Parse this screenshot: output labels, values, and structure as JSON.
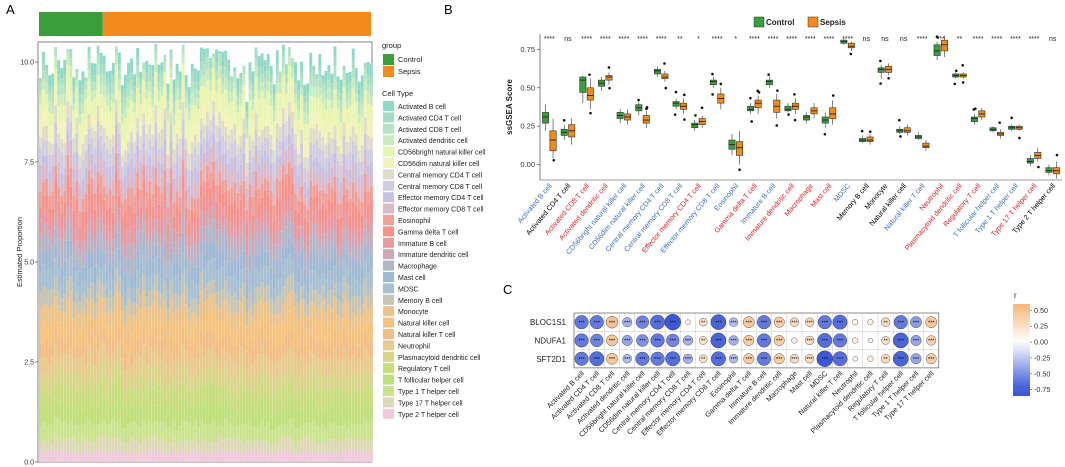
{
  "colors": {
    "control": "#3a9e3a",
    "sepsis": "#f28a1c",
    "blue_label": "#3b6fc4",
    "red_label": "#e02020",
    "black_label": "#000000",
    "corr_pos": "#f5a25a",
    "corr_neg": "#3c58d8"
  },
  "chart_data": [
    {
      "panel": "A",
      "type": "bar",
      "subtype": "stacked-proportion",
      "ylabel": "Estimated Proportion",
      "ytick_labels": [
        "0.0",
        "2.5",
        "5.0",
        "7.5",
        "10.0"
      ],
      "ylim": [
        0,
        10.5
      ],
      "group_legend": {
        "title": "group",
        "entries": [
          "Control",
          "Sepsis"
        ]
      },
      "n_samples": 110,
      "n_control": 21,
      "celltype_legend_title": "Cell Type",
      "cell_types": [
        {
          "name": "Activated B cell",
          "color": "#8fd9c9",
          "share": 0.3
        },
        {
          "name": "Activated CD4 T cell",
          "color": "#a3ddc6",
          "share": 0.2
        },
        {
          "name": "Activated CD8 T cell",
          "color": "#b5e3c4",
          "share": 0.25
        },
        {
          "name": "Activated dendritic cell",
          "color": "#c9ecbf",
          "share": 0.25
        },
        {
          "name": "CD56bright natural killer cell",
          "color": "#e8f5b0",
          "share": 0.4
        },
        {
          "name": "CD56dim natural killer cell",
          "color": "#f1f4b6",
          "share": 0.4
        },
        {
          "name": "Central memory CD4 T cell",
          "color": "#e0dcca",
          "share": 0.35
        },
        {
          "name": "Central memory CD8 T cell",
          "color": "#d2cce0",
          "share": 0.4
        },
        {
          "name": "Effector memory CD4 T cell",
          "color": "#c8c0e2",
          "share": 0.3
        },
        {
          "name": "Effector memory CD8 T cell",
          "color": "#dcb9c8",
          "share": 0.35
        },
        {
          "name": "Eosinophil",
          "color": "#f0a098",
          "share": 0.4
        },
        {
          "name": "Gamma delta T cell",
          "color": "#f6928c",
          "share": 0.4
        },
        {
          "name": "Immature B cell",
          "color": "#e9999f",
          "share": 0.35
        },
        {
          "name": "Immature dendritic cell",
          "color": "#cfa8b8",
          "share": 0.3
        },
        {
          "name": "Macrophage",
          "color": "#b3b5c9",
          "share": 0.4
        },
        {
          "name": "Mast cell",
          "color": "#9fb8d4",
          "share": 0.4
        },
        {
          "name": "MDSC",
          "color": "#a6c0d2",
          "share": 0.45
        },
        {
          "name": "Memory B cell",
          "color": "#c7c4b3",
          "share": 0.4
        },
        {
          "name": "Monocyte",
          "color": "#ebc38c",
          "share": 0.4
        },
        {
          "name": "Natural killer cell",
          "color": "#f6c37e",
          "share": 0.45
        },
        {
          "name": "Natural killer T cell",
          "color": "#f3be86",
          "share": 0.4
        },
        {
          "name": "Neutrophil",
          "color": "#e8ca8e",
          "share": 0.45
        },
        {
          "name": "Plasmacytoid dendritic cell",
          "color": "#d8d58a",
          "share": 0.4
        },
        {
          "name": "Regulatory T cell",
          "color": "#c9dc7e",
          "share": 0.45
        },
        {
          "name": "T follicular helper cell",
          "color": "#bfe07a",
          "share": 0.45
        },
        {
          "name": "Type 1 T helper cell",
          "color": "#cbe28e",
          "share": 0.4
        },
        {
          "name": "Type 17 T helper cell",
          "color": "#ddd9b6",
          "share": 0.3
        },
        {
          "name": "Type 2 T helper cell",
          "color": "#f1c9dc",
          "share": 0.25
        }
      ]
    },
    {
      "panel": "B",
      "type": "box",
      "ylabel": "ssGSEA Score",
      "ylim": [
        -0.1,
        0.85
      ],
      "yticks": [
        0.0,
        0.25,
        0.5,
        0.75
      ],
      "ytick_labels": [
        "0.00",
        "0.25",
        "0.50",
        "0.75"
      ],
      "legend": [
        "Control",
        "Sepsis"
      ],
      "series": [
        {
          "name": "Activated B cell",
          "label_color": "blue",
          "sig": "****",
          "control": [
            0.22,
            0.27,
            0.31,
            0.34,
            0.39
          ],
          "sepsis": [
            0.04,
            0.09,
            0.16,
            0.22,
            0.3
          ]
        },
        {
          "name": "Activated CD4 T cell",
          "label_color": "black",
          "sig": "ns",
          "control": [
            0.16,
            0.19,
            0.21,
            0.23,
            0.26
          ],
          "sepsis": [
            0.13,
            0.18,
            0.22,
            0.26,
            0.3
          ]
        },
        {
          "name": "Activated CD8 T cell",
          "label_color": "red",
          "sig": "****",
          "control": [
            0.4,
            0.47,
            0.55,
            0.57,
            0.58
          ],
          "sepsis": [
            0.36,
            0.42,
            0.45,
            0.5,
            0.56
          ]
        },
        {
          "name": "Activated dendritic cell",
          "label_color": "red",
          "sig": "****",
          "control": [
            0.48,
            0.51,
            0.53,
            0.55,
            0.57
          ],
          "sepsis": [
            0.52,
            0.55,
            0.57,
            0.58,
            0.6
          ]
        },
        {
          "name": "CD56bright natural killer cell",
          "label_color": "blue",
          "sig": "****",
          "control": [
            0.27,
            0.3,
            0.32,
            0.34,
            0.36
          ],
          "sepsis": [
            0.26,
            0.29,
            0.31,
            0.33,
            0.36
          ]
        },
        {
          "name": "CD56dim natural killer cell",
          "label_color": "blue",
          "sig": "****",
          "control": [
            0.32,
            0.35,
            0.37,
            0.39,
            0.41
          ],
          "sepsis": [
            0.24,
            0.27,
            0.29,
            0.32,
            0.35
          ]
        },
        {
          "name": "Central memory CD4 T cell",
          "label_color": "blue",
          "sig": "****",
          "control": [
            0.57,
            0.59,
            0.61,
            0.62,
            0.64
          ],
          "sepsis": [
            0.54,
            0.56,
            0.57,
            0.59,
            0.61
          ]
        },
        {
          "name": "Central memory CD8 T cell",
          "label_color": "blue",
          "sig": "**",
          "control": [
            0.36,
            0.38,
            0.4,
            0.41,
            0.43
          ],
          "sepsis": [
            0.33,
            0.36,
            0.38,
            0.4,
            0.43
          ]
        },
        {
          "name": "Effector memory CD4 T cell",
          "label_color": "red",
          "sig": "*",
          "control": [
            0.22,
            0.24,
            0.26,
            0.27,
            0.29
          ],
          "sepsis": [
            0.24,
            0.26,
            0.28,
            0.3,
            0.32
          ]
        },
        {
          "name": "Effector memory CD8 T cell",
          "label_color": "blue",
          "sig": "****",
          "control": [
            0.5,
            0.52,
            0.54,
            0.55,
            0.57
          ],
          "sepsis": [
            0.36,
            0.4,
            0.43,
            0.46,
            0.5
          ]
        },
        {
          "name": "Eosinophil",
          "label_color": "blue",
          "sig": "*",
          "control": [
            0.06,
            0.1,
            0.13,
            0.16,
            0.2
          ],
          "sepsis": [
            0.0,
            0.06,
            0.11,
            0.15,
            0.22
          ]
        },
        {
          "name": "Gamma delta T cell",
          "label_color": "red",
          "sig": "****",
          "control": [
            0.33,
            0.35,
            0.36,
            0.38,
            0.4
          ],
          "sepsis": [
            0.33,
            0.37,
            0.4,
            0.42,
            0.45
          ]
        },
        {
          "name": "Immature B cell",
          "label_color": "blue",
          "sig": "****",
          "control": [
            0.5,
            0.52,
            0.54,
            0.55,
            0.57
          ],
          "sepsis": [
            0.3,
            0.34,
            0.38,
            0.42,
            0.46
          ]
        },
        {
          "name": "Immature dendritic cell",
          "label_color": "red",
          "sig": "****",
          "control": [
            0.34,
            0.35,
            0.36,
            0.38,
            0.4
          ],
          "sepsis": [
            0.33,
            0.36,
            0.38,
            0.4,
            0.43
          ]
        },
        {
          "name": "Macrophage",
          "label_color": "red",
          "sig": "****",
          "control": [
            0.27,
            0.29,
            0.31,
            0.32,
            0.34
          ],
          "sepsis": [
            0.3,
            0.33,
            0.35,
            0.37,
            0.4
          ]
        },
        {
          "name": "Mast cell",
          "label_color": "red",
          "sig": "****",
          "control": [
            0.24,
            0.27,
            0.29,
            0.31,
            0.34
          ],
          "sepsis": [
            0.26,
            0.3,
            0.33,
            0.37,
            0.42
          ]
        },
        {
          "name": "MDSC",
          "label_color": "blue",
          "sig": "****",
          "control": [
            0.78,
            0.79,
            0.8,
            0.81,
            0.82
          ],
          "sepsis": [
            0.74,
            0.76,
            0.77,
            0.79,
            0.8
          ]
        },
        {
          "name": "Memory B cell",
          "label_color": "black",
          "sig": "ns",
          "control": [
            0.14,
            0.15,
            0.16,
            0.17,
            0.19
          ],
          "sepsis": [
            0.13,
            0.15,
            0.16,
            0.18,
            0.2
          ]
        },
        {
          "name": "Monocyte",
          "label_color": "black",
          "sig": "ns",
          "control": [
            0.56,
            0.6,
            0.62,
            0.63,
            0.65
          ],
          "sepsis": [
            0.58,
            0.6,
            0.62,
            0.64,
            0.66
          ]
        },
        {
          "name": "Natural killer cell",
          "label_color": "black",
          "sig": "ns",
          "control": [
            0.2,
            0.21,
            0.22,
            0.23,
            0.25
          ],
          "sepsis": [
            0.19,
            0.21,
            0.22,
            0.24,
            0.26
          ]
        },
        {
          "name": "Natural killer T cell",
          "label_color": "blue",
          "sig": "****",
          "control": [
            0.16,
            0.17,
            0.18,
            0.19,
            0.21
          ],
          "sepsis": [
            0.09,
            0.11,
            0.12,
            0.14,
            0.16
          ]
        },
        {
          "name": "Neutrophil",
          "label_color": "red",
          "sig": "***",
          "control": [
            0.68,
            0.71,
            0.74,
            0.78,
            0.8
          ],
          "sepsis": [
            0.7,
            0.74,
            0.78,
            0.81,
            0.84
          ]
        },
        {
          "name": "Plasmacytoid dendritic cell",
          "label_color": "red",
          "sig": "**",
          "control": [
            0.56,
            0.57,
            0.58,
            0.59,
            0.6
          ],
          "sepsis": [
            0.56,
            0.57,
            0.58,
            0.59,
            0.6
          ]
        },
        {
          "name": "Regulatory T cell",
          "label_color": "red",
          "sig": "****",
          "control": [
            0.26,
            0.28,
            0.3,
            0.31,
            0.33
          ],
          "sepsis": [
            0.29,
            0.31,
            0.33,
            0.35,
            0.37
          ]
        },
        {
          "name": "T follicular helper cell",
          "label_color": "blue",
          "sig": "****",
          "control": [
            0.21,
            0.22,
            0.23,
            0.24,
            0.25
          ],
          "sepsis": [
            0.17,
            0.19,
            0.2,
            0.21,
            0.23
          ]
        },
        {
          "name": "Type 1 T helper cell",
          "label_color": "blue",
          "sig": "****",
          "control": [
            0.22,
            0.23,
            0.24,
            0.25,
            0.26
          ],
          "sepsis": [
            0.22,
            0.23,
            0.24,
            0.25,
            0.26
          ]
        },
        {
          "name": "Type 17 T helper cell",
          "label_color": "red",
          "sig": "****",
          "control": [
            -0.01,
            0.01,
            0.02,
            0.04,
            0.06
          ],
          "sepsis": [
            0.02,
            0.04,
            0.06,
            0.08,
            0.11
          ]
        },
        {
          "name": "Type 2 T helper cell",
          "label_color": "black",
          "sig": "ns",
          "control": [
            -0.07,
            -0.05,
            -0.04,
            -0.02,
            0.0
          ],
          "sepsis": [
            -0.09,
            -0.06,
            -0.04,
            -0.02,
            0.02
          ]
        }
      ]
    },
    {
      "panel": "C",
      "type": "heatmap",
      "subtype": "correlation-dotplot",
      "rows": [
        "BLOC1S1",
        "NDUFA1",
        "SFT2D1"
      ],
      "columns": [
        "Activated B cell",
        "Activated CD4 T cell",
        "Activated CD8 T cell",
        "Activated dendritic cell",
        "CD56bright natural killer cell",
        "CD56dim natural killer cell",
        "Central memory CD4 T cell",
        "Central memory CD8 T cell",
        "Effector memory CD4 T cell",
        "Effector memory CD8 T cell",
        "Eosinophil",
        "Gamma delta T cell",
        "Immature  B cell",
        "Immature dendritic cell",
        "Macrophage",
        "Mast cell",
        "MDSC",
        "Natural killer T cell",
        "Neutrophil",
        "Plasmacytoid dendritic cell",
        "Regulatory T cell",
        "T follicular helper cell",
        "Type 1 T helper cell",
        "Type 17 T helper cell"
      ],
      "r": [
        [
          -0.6,
          -0.6,
          0.5,
          -0.35,
          -0.55,
          -0.65,
          -0.75,
          0.05,
          0.25,
          -0.7,
          -0.3,
          0.45,
          -0.6,
          0.4,
          0.3,
          0.3,
          -0.6,
          -0.65,
          0.1,
          0.1,
          0.3,
          -0.6,
          -0.45,
          0.45
        ],
        [
          -0.6,
          -0.55,
          0.45,
          -0.4,
          -0.5,
          -0.6,
          -0.55,
          -0.35,
          0.25,
          -0.7,
          -0.35,
          0.4,
          -0.6,
          0.4,
          0.1,
          0.3,
          -0.65,
          -0.6,
          0.1,
          0.05,
          0.25,
          -0.7,
          -0.4,
          0.35
        ],
        [
          -0.6,
          -0.65,
          0.45,
          -0.3,
          -0.6,
          -0.6,
          -0.65,
          -0.35,
          0.25,
          -0.65,
          -0.3,
          0.4,
          -0.6,
          0.4,
          0.3,
          0.3,
          -0.75,
          -0.65,
          0.05,
          0.1,
          0.3,
          -0.7,
          -0.4,
          0.4
        ]
      ],
      "sig": [
        [
          "***",
          "***",
          "***",
          "***",
          "***",
          "***",
          "***",
          "",
          "**",
          "***",
          "***",
          "***",
          "***",
          "***",
          "***",
          "***",
          "***",
          "***",
          "",
          "",
          "**",
          "***",
          "***",
          "***"
        ],
        [
          "***",
          "***",
          "***",
          "***",
          "***",
          "***",
          "***",
          "***",
          "**",
          "***",
          "***",
          "***",
          "***",
          "***",
          "",
          "***",
          "***",
          "***",
          "",
          "",
          "**",
          "***",
          "***",
          "***"
        ],
        [
          "***",
          "***",
          "***",
          "***",
          "***",
          "***",
          "***",
          "***",
          "**",
          "***",
          "***",
          "***",
          "***",
          "***",
          "***",
          "***",
          "***",
          "***",
          "",
          "",
          "**",
          "***",
          "***",
          "***"
        ]
      ],
      "colorbar": {
        "title": "r",
        "tick_labels": [
          "0.50",
          "0.25",
          "0.00",
          "-0.25",
          "-0.50",
          "-0.75"
        ],
        "range": [
          -0.85,
          0.6
        ]
      }
    }
  ],
  "panels": {
    "a": "A",
    "b": "B",
    "c": "C"
  }
}
